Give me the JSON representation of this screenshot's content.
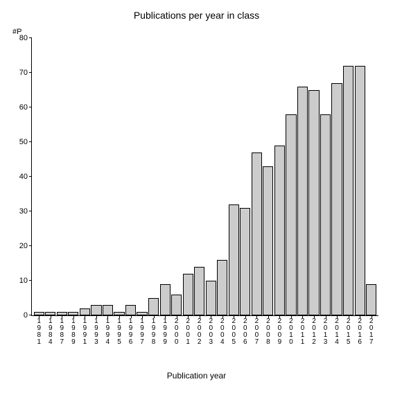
{
  "chart": {
    "type": "bar",
    "title": "Publications per year in class",
    "title_fontsize": 14,
    "ylabel": "#P",
    "xlabel": "Publication year",
    "label_fontsize": 12,
    "tick_fontsize": 11,
    "ylim": [
      0,
      80
    ],
    "ytick_step": 10,
    "yticks": [
      0,
      10,
      20,
      30,
      40,
      50,
      60,
      70,
      80
    ],
    "background_color": "#ffffff",
    "bar_fill_color": "#cccccc",
    "bar_border_color": "#000000",
    "axis_color": "#000000",
    "bar_width_ratio": 0.92,
    "categories": [
      "1981",
      "1984",
      "1987",
      "1989",
      "1991",
      "1993",
      "1994",
      "1995",
      "1996",
      "1997",
      "1998",
      "1999",
      "2000",
      "2001",
      "2002",
      "2003",
      "2004",
      "2005",
      "2006",
      "2007",
      "2008",
      "2009",
      "2010",
      "2011",
      "2012",
      "2013",
      "2014",
      "2015",
      "2016",
      "2017"
    ],
    "values": [
      1,
      1,
      1,
      1,
      2,
      3,
      3,
      1,
      3,
      1,
      5,
      9,
      6,
      12,
      14,
      10,
      16,
      32,
      31,
      47,
      43,
      49,
      58,
      66,
      65,
      58,
      67,
      72,
      72,
      9
    ]
  }
}
